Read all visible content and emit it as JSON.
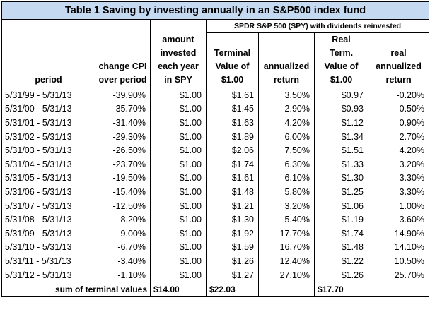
{
  "title": "Table 1    Saving by investing annually in an S&P500 index fund",
  "spdr_header": "SPDR S&P 500 (SPY) with dividends reinvested",
  "headers": {
    "period": [
      "period"
    ],
    "cpi": [
      "change CPI",
      "over period"
    ],
    "invested": [
      "amount",
      "invested",
      "each year",
      "in SPY"
    ],
    "terminal": [
      "Terminal",
      "Value of",
      "$1.00"
    ],
    "annualized": [
      "annualized",
      "return"
    ],
    "real_term": [
      "Real",
      "Term.",
      "Value of",
      "$1.00"
    ],
    "real_annualized": [
      "real",
      "annualized",
      "return"
    ]
  },
  "rows": [
    [
      "5/31/99 - 5/31/13",
      "-39.90%",
      "$1.00",
      "$1.61",
      "3.50%",
      "$0.97",
      "-0.20%"
    ],
    [
      "5/31/00 - 5/31/13",
      "-35.70%",
      "$1.00",
      "$1.45",
      "2.90%",
      "$0.93",
      "-0.50%"
    ],
    [
      "5/31/01 - 5/31/13",
      "-31.40%",
      "$1.00",
      "$1.63",
      "4.20%",
      "$1.12",
      "0.90%"
    ],
    [
      "5/31/02 - 5/31/13",
      "-29.30%",
      "$1.00",
      "$1.89",
      "6.00%",
      "$1.34",
      "2.70%"
    ],
    [
      "5/31/03 - 5/31/13",
      "-26.50%",
      "$1.00",
      "$2.06",
      "7.50%",
      "$1.51",
      "4.20%"
    ],
    [
      "5/31/04 - 5/31/13",
      "-23.70%",
      "$1.00",
      "$1.74",
      "6.30%",
      "$1.33",
      "3.20%"
    ],
    [
      "5/31/05 - 5/31/13",
      "-19.50%",
      "$1.00",
      "$1.61",
      "6.10%",
      "$1.30",
      "3.30%"
    ],
    [
      "5/31/06 - 5/31/13",
      "-15.40%",
      "$1.00",
      "$1.48",
      "5.80%",
      "$1.25",
      "3.30%"
    ],
    [
      "5/31/07 - 5/31/13",
      "-12.50%",
      "$1.00",
      "$1.21",
      "3.20%",
      "$1.06",
      "1.00%"
    ],
    [
      "5/31/08 - 5/31/13",
      "-8.20%",
      "$1.00",
      "$1.30",
      "5.40%",
      "$1.19",
      "3.60%"
    ],
    [
      "5/31/09 - 5/31/13",
      "-9.00%",
      "$1.00",
      "$1.92",
      "17.70%",
      "$1.74",
      "14.90%"
    ],
    [
      "5/31/10 - 5/31/13",
      "-6.70%",
      "$1.00",
      "$1.59",
      "16.70%",
      "$1.48",
      "14.10%"
    ],
    [
      "5/31/11 - 5/31/13",
      "-3.40%",
      "$1.00",
      "$1.26",
      "12.40%",
      "$1.22",
      "10.50%"
    ],
    [
      "5/31/12 - 5/31/13",
      "-1.10%",
      "$1.00",
      "$1.27",
      "27.10%",
      "$1.26",
      "25.70%"
    ]
  ],
  "summary": {
    "label": "sum of terminal values",
    "invested_total": "$14.00",
    "terminal_total": "$22.03",
    "real_total": "$17.70"
  }
}
